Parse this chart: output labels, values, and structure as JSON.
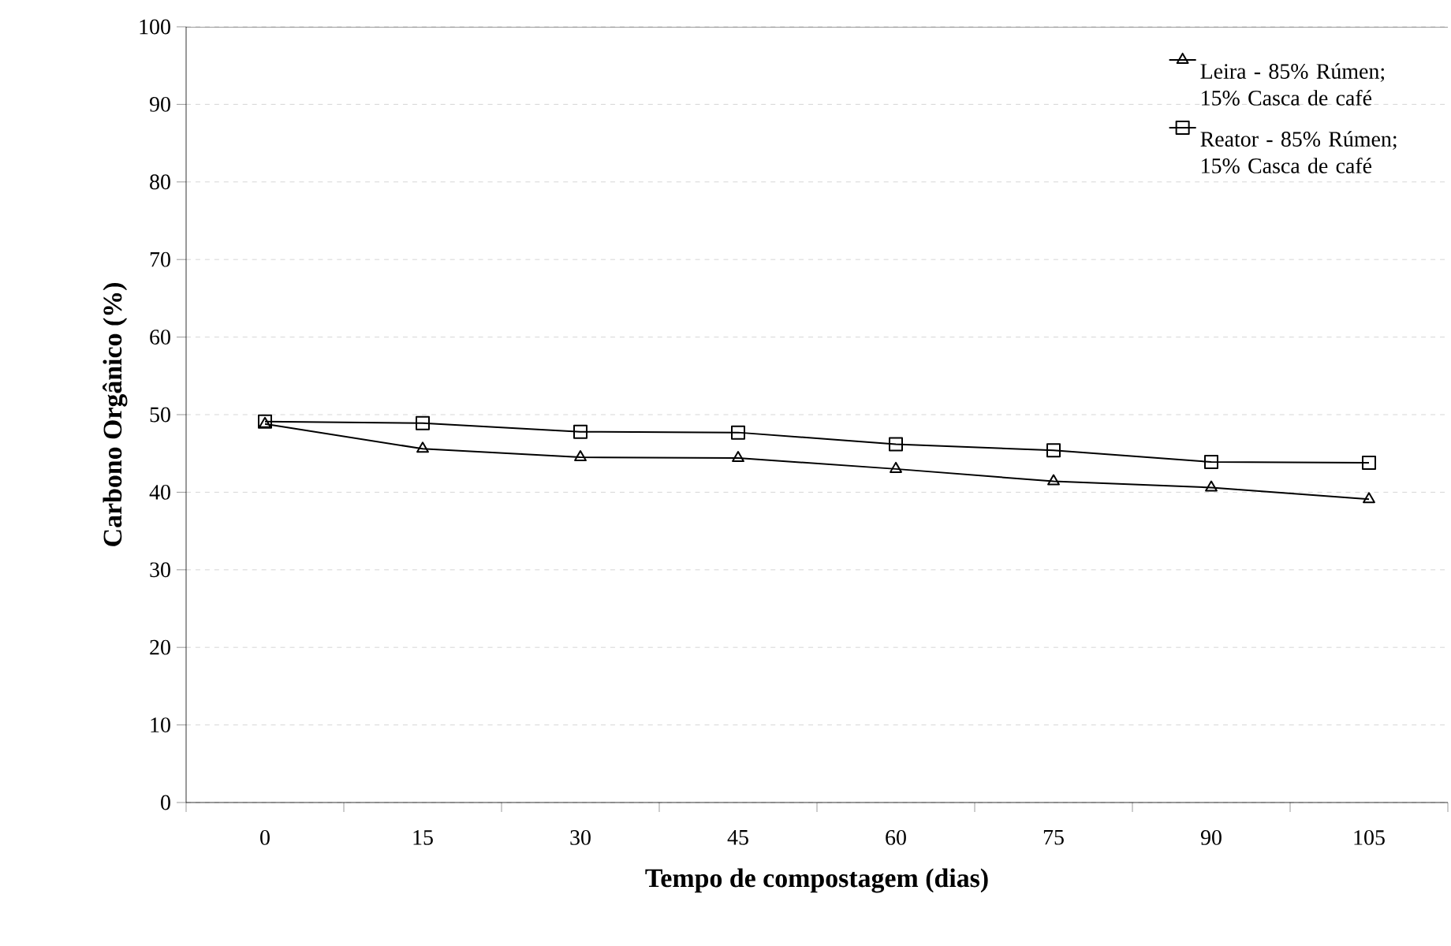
{
  "chart_data": {
    "type": "line",
    "xlabel": "Tempo de compostagem (dias)",
    "ylabel": "Carbono Orgânico (%)",
    "categories": [
      "0",
      "15",
      "30",
      "45",
      "60",
      "75",
      "90",
      "105"
    ],
    "ylim": [
      0,
      100
    ],
    "yticks": [
      0,
      10,
      20,
      30,
      40,
      50,
      60,
      70,
      80,
      90,
      100
    ],
    "grid": "y",
    "legend": "top right",
    "line_style": "solid",
    "series": [
      {
        "name": "Leira - 85% Rúmen; 15% Casca de café",
        "color": "#000000",
        "marker": "triangle",
        "values": [
          48.8,
          45.6,
          44.5,
          44.4,
          43.0,
          41.4,
          40.6,
          39.1
        ]
      },
      {
        "name": "Reator - 85% Rúmen; 15% Casca de café",
        "color": "#000000",
        "marker": "square",
        "values": [
          49.1,
          48.9,
          47.8,
          47.7,
          46.2,
          45.4,
          43.9,
          43.8
        ]
      }
    ]
  }
}
